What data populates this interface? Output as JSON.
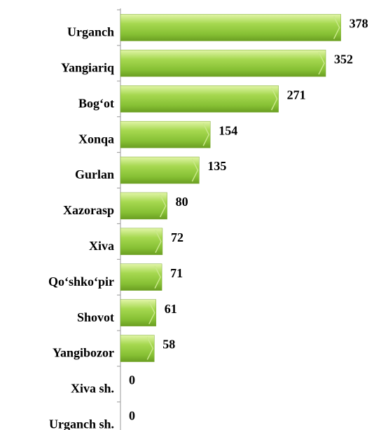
{
  "chart_data": {
    "type": "barh",
    "categories": [
      "Urganch",
      "Yangiariq",
      "Bog‘ot",
      "Xonqa",
      "Gurlan",
      "Xazorasp",
      "Xiva",
      "Qo‘shko‘pir",
      "Shovot",
      "Yangibozor",
      "Xiva sh.",
      "Urganch sh."
    ],
    "values": [
      378,
      352,
      271,
      154,
      135,
      80,
      72,
      71,
      61,
      58,
      0,
      0
    ],
    "color": "#92c83e",
    "xlim": [
      0,
      400
    ]
  }
}
